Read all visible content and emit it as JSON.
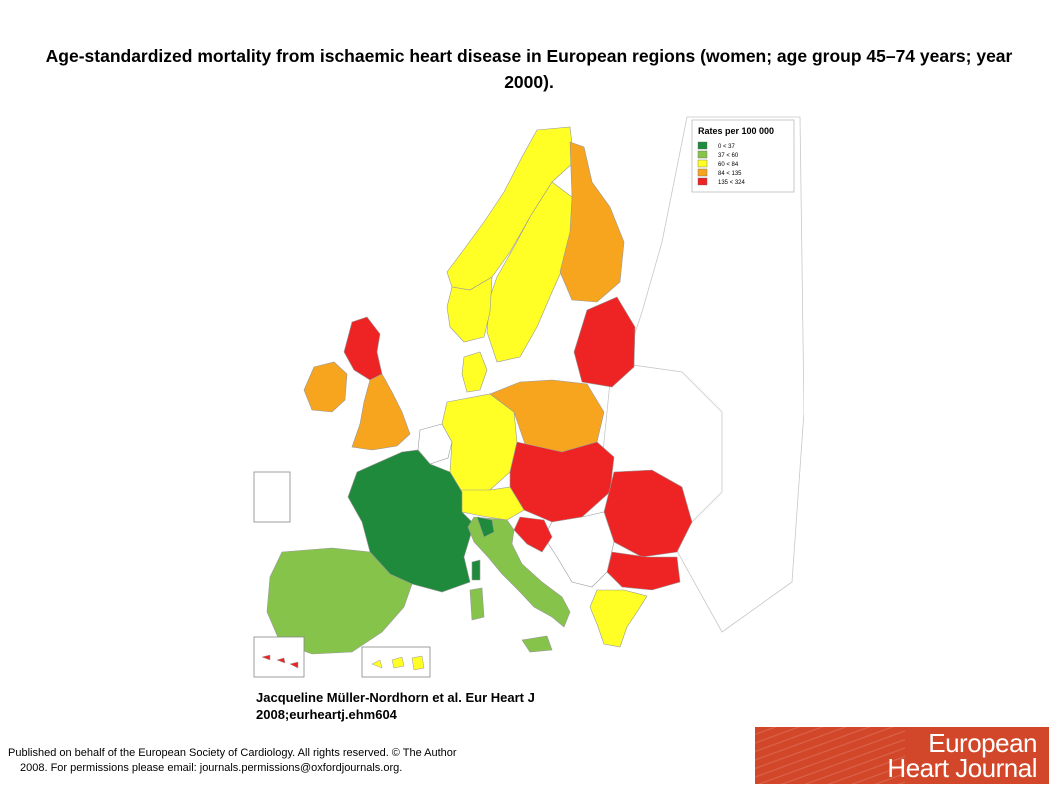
{
  "title": "Age-standardized mortality from ischaemic heart disease in European regions (women; age group 45–74 years; year 2000).",
  "map": {
    "legend": {
      "title": "Rates per 100 000",
      "classes": [
        {
          "label": "0 < 37",
          "color": "#1f8a3c"
        },
        {
          "label": "37 < 60",
          "color": "#86c34a"
        },
        {
          "label": "60 < 84",
          "color": "#ffff26"
        },
        {
          "label": "84 < 135",
          "color": "#f7a51e"
        },
        {
          "label": "135 < 324",
          "color": "#ee2424"
        }
      ],
      "no_data_color": "#ffffff"
    },
    "regions": [
      {
        "name": "Scandinavia (Norway/Sweden)",
        "class": "60 < 84"
      },
      {
        "name": "Finland",
        "class": "84 < 135"
      },
      {
        "name": "Baltic states",
        "class": "135 < 324"
      },
      {
        "name": "Scotland",
        "class": "135 < 324"
      },
      {
        "name": "Ireland",
        "class": "84 < 135"
      },
      {
        "name": "England and Wales",
        "class": "84 < 135"
      },
      {
        "name": "Denmark",
        "class": "60 < 84"
      },
      {
        "name": "Germany",
        "class": "60 < 84"
      },
      {
        "name": "Poland",
        "class": "84 < 135"
      },
      {
        "name": "Czech Republic / Slovakia / Hungary",
        "class": "135 < 324"
      },
      {
        "name": "Romania",
        "class": "135 < 324"
      },
      {
        "name": "Bulgaria",
        "class": "135 < 324"
      },
      {
        "name": "Greece",
        "class": "60 < 84"
      },
      {
        "name": "France",
        "class": "0 < 37"
      },
      {
        "name": "Spain and Portugal",
        "class": "37 < 60"
      },
      {
        "name": "Italy",
        "class": "37 < 60"
      },
      {
        "name": "Switzerland / Austria",
        "class": "60 < 84"
      },
      {
        "name": "Croatia",
        "class": "135 < 324"
      },
      {
        "name": "Belarus / Ukraine / Russia",
        "class": "no data"
      }
    ]
  },
  "citation": {
    "line1": "Jacqueline Müller-Nordhorn et al. Eur Heart J",
    "line2": "2008;eurheartj.ehm604"
  },
  "footer": {
    "line1": "Published on behalf of the European Society of Cardiology. All rights reserved. © The Author",
    "line2": "2008. For permissions please email: journals.permissions@oxfordjournals.org."
  },
  "logo": {
    "line1": "European",
    "line2": "Heart Journal"
  }
}
